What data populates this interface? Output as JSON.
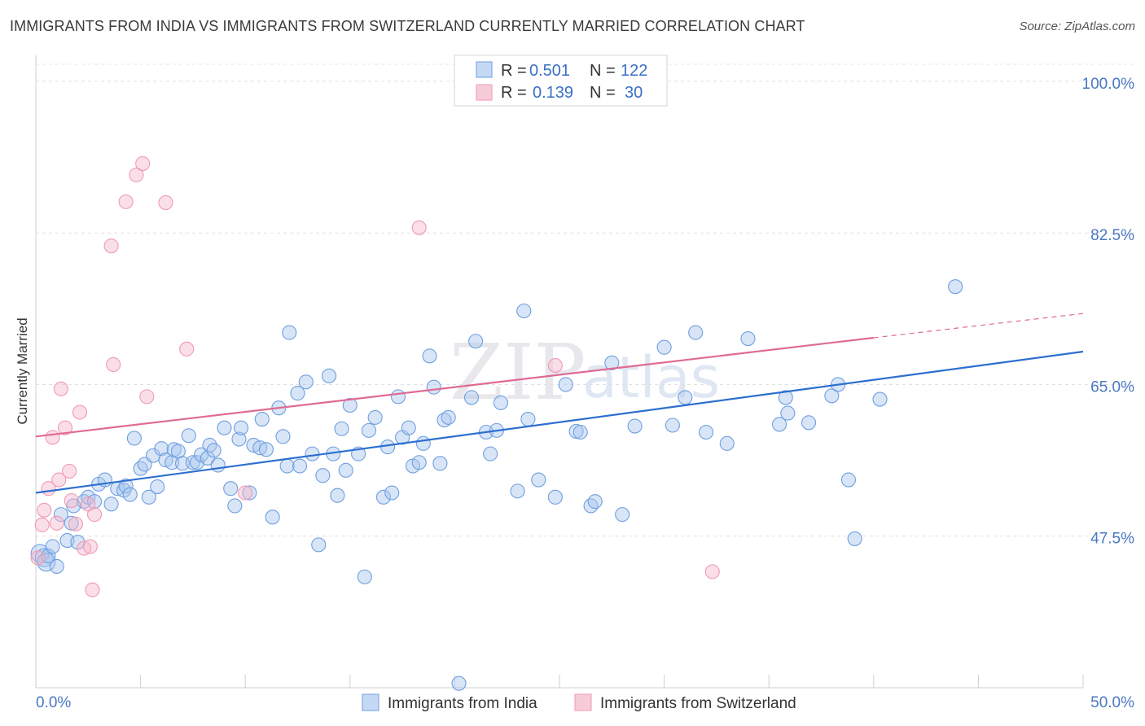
{
  "header": {
    "title": "IMMIGRANTS FROM INDIA VS IMMIGRANTS FROM SWITZERLAND CURRENTLY MARRIED CORRELATION CHART",
    "source": "Source: ZipAtlas.com"
  },
  "watermark": {
    "part1": "ZIP",
    "part2": "atlas"
  },
  "chart_data": {
    "type": "scatter",
    "ylabel": "Currently Married",
    "xlim": [
      0,
      50
    ],
    "ylim": [
      30,
      103
    ],
    "x_tick_labels": [
      "0.0%",
      "50.0%"
    ],
    "y_ticks": [
      47.5,
      65.0,
      82.5,
      100.0
    ],
    "y_tick_labels": [
      "47.5%",
      "65.0%",
      "82.5%",
      "100.0%"
    ],
    "grid": "horizontal dashed",
    "legend_position": "top-center",
    "colors": {
      "india": "#6f9fe0",
      "india_line": "#2d6fd0",
      "switzerland": "#ef9ab4",
      "switzerland_line": "#e06a93"
    },
    "legend": [
      {
        "r_label": "R =",
        "r_value": "0.501",
        "n_label": "N =",
        "n_value": "122"
      },
      {
        "r_label": "R =",
        "r_value": "0.139",
        "n_label": "N =",
        "n_value": "30"
      }
    ],
    "series": [
      {
        "name": "Immigrants from India",
        "trend": {
          "x": [
            0,
            50
          ],
          "y": [
            52.5,
            68.8
          ]
        },
        "points": [
          [
            0.2,
            45.5
          ],
          [
            0.4,
            45.0
          ],
          [
            0.5,
            44.5
          ],
          [
            0.6,
            45.2
          ],
          [
            0.8,
            46.3
          ],
          [
            1.0,
            44.0
          ],
          [
            1.2,
            50.0
          ],
          [
            1.5,
            47.0
          ],
          [
            1.7,
            49.0
          ],
          [
            1.8,
            51.0
          ],
          [
            2.0,
            46.8
          ],
          [
            2.3,
            51.5
          ],
          [
            2.5,
            52.0
          ],
          [
            2.8,
            51.5
          ],
          [
            3.0,
            53.5
          ],
          [
            3.3,
            54.0
          ],
          [
            3.6,
            51.2
          ],
          [
            3.9,
            53.0
          ],
          [
            4.2,
            52.8
          ],
          [
            4.3,
            53.3
          ],
          [
            4.5,
            52.3
          ],
          [
            4.7,
            58.8
          ],
          [
            5.0,
            55.3
          ],
          [
            5.2,
            55.8
          ],
          [
            5.4,
            52.0
          ],
          [
            5.6,
            56.8
          ],
          [
            5.8,
            53.2
          ],
          [
            6.0,
            57.6
          ],
          [
            6.2,
            56.3
          ],
          [
            6.5,
            56.0
          ],
          [
            6.6,
            57.5
          ],
          [
            6.8,
            57.3
          ],
          [
            7.0,
            55.9
          ],
          [
            7.3,
            59.1
          ],
          [
            7.5,
            56.0
          ],
          [
            7.7,
            56.0
          ],
          [
            7.9,
            56.9
          ],
          [
            8.2,
            56.5
          ],
          [
            8.3,
            58.0
          ],
          [
            8.5,
            57.4
          ],
          [
            8.7,
            55.7
          ],
          [
            9.0,
            60.0
          ],
          [
            9.3,
            53.0
          ],
          [
            9.5,
            51.0
          ],
          [
            9.7,
            58.7
          ],
          [
            9.8,
            60.0
          ],
          [
            10.2,
            52.5
          ],
          [
            10.4,
            58.0
          ],
          [
            10.7,
            57.7
          ],
          [
            10.8,
            61.0
          ],
          [
            11.0,
            57.5
          ],
          [
            11.3,
            49.7
          ],
          [
            11.6,
            62.3
          ],
          [
            11.8,
            59.0
          ],
          [
            12.0,
            55.6
          ],
          [
            12.1,
            71.0
          ],
          [
            12.5,
            64.0
          ],
          [
            12.6,
            55.6
          ],
          [
            12.9,
            65.3
          ],
          [
            13.2,
            57.0
          ],
          [
            13.5,
            46.5
          ],
          [
            13.7,
            54.5
          ],
          [
            14.0,
            66.0
          ],
          [
            14.2,
            57.0
          ],
          [
            14.4,
            52.2
          ],
          [
            14.6,
            59.9
          ],
          [
            14.8,
            55.1
          ],
          [
            15.0,
            62.6
          ],
          [
            15.4,
            57.0
          ],
          [
            15.7,
            42.8
          ],
          [
            15.9,
            59.7
          ],
          [
            16.2,
            61.2
          ],
          [
            16.6,
            52.0
          ],
          [
            16.8,
            57.8
          ],
          [
            17.0,
            52.5
          ],
          [
            17.3,
            63.6
          ],
          [
            17.5,
            58.9
          ],
          [
            17.8,
            60.0
          ],
          [
            18.0,
            55.6
          ],
          [
            18.3,
            56.0
          ],
          [
            18.5,
            58.2
          ],
          [
            18.8,
            68.3
          ],
          [
            19.0,
            64.7
          ],
          [
            19.3,
            55.9
          ],
          [
            19.5,
            60.9
          ],
          [
            19.7,
            61.2
          ],
          [
            20.2,
            30.5
          ],
          [
            20.8,
            63.5
          ],
          [
            21.0,
            70.0
          ],
          [
            21.5,
            59.5
          ],
          [
            21.7,
            57.0
          ],
          [
            22.0,
            59.7
          ],
          [
            22.2,
            62.9
          ],
          [
            23.0,
            52.7
          ],
          [
            23.3,
            73.5
          ],
          [
            23.5,
            61.0
          ],
          [
            24.0,
            54.0
          ],
          [
            24.8,
            52.0
          ],
          [
            25.3,
            65.0
          ],
          [
            25.8,
            59.6
          ],
          [
            26.0,
            59.5
          ],
          [
            26.5,
            51.0
          ],
          [
            26.7,
            51.5
          ],
          [
            27.5,
            67.5
          ],
          [
            28.0,
            50.0
          ],
          [
            28.6,
            60.2
          ],
          [
            30.0,
            69.3
          ],
          [
            30.4,
            60.3
          ],
          [
            31.0,
            63.5
          ],
          [
            31.5,
            71.0
          ],
          [
            32.0,
            59.5
          ],
          [
            33.0,
            58.2
          ],
          [
            34.0,
            70.3
          ],
          [
            35.5,
            60.4
          ],
          [
            35.8,
            63.5
          ],
          [
            35.9,
            61.7
          ],
          [
            36.9,
            60.6
          ],
          [
            38.0,
            63.7
          ],
          [
            38.3,
            65.0
          ],
          [
            38.8,
            54.0
          ],
          [
            39.1,
            47.2
          ],
          [
            40.3,
            63.3
          ],
          [
            43.9,
            76.3
          ]
        ]
      },
      {
        "name": "Immigrants from Switzerland",
        "trend": {
          "x": [
            0,
            40
          ],
          "y": [
            59.0,
            70.4
          ]
        },
        "trend_extension": {
          "x": [
            40,
            50
          ],
          "y": [
            70.4,
            73.2
          ]
        },
        "points": [
          [
            0.1,
            45.0
          ],
          [
            0.3,
            48.8
          ],
          [
            0.4,
            50.5
          ],
          [
            0.6,
            53.0
          ],
          [
            0.8,
            58.9
          ],
          [
            1.0,
            49.0
          ],
          [
            1.1,
            54.0
          ],
          [
            1.2,
            64.5
          ],
          [
            1.4,
            60.0
          ],
          [
            1.6,
            55.0
          ],
          [
            1.7,
            51.6
          ],
          [
            1.9,
            48.9
          ],
          [
            2.1,
            61.8
          ],
          [
            2.3,
            46.1
          ],
          [
            2.5,
            51.2
          ],
          [
            2.6,
            46.3
          ],
          [
            2.7,
            41.3
          ],
          [
            2.8,
            50.0
          ],
          [
            3.6,
            81.0
          ],
          [
            3.7,
            67.3
          ],
          [
            4.3,
            86.1
          ],
          [
            4.8,
            89.2
          ],
          [
            5.1,
            90.5
          ],
          [
            5.3,
            63.6
          ],
          [
            6.2,
            86.0
          ],
          [
            7.2,
            69.1
          ],
          [
            10.0,
            52.5
          ],
          [
            18.3,
            83.1
          ],
          [
            24.8,
            67.2
          ],
          [
            32.3,
            43.4
          ]
        ]
      }
    ]
  }
}
